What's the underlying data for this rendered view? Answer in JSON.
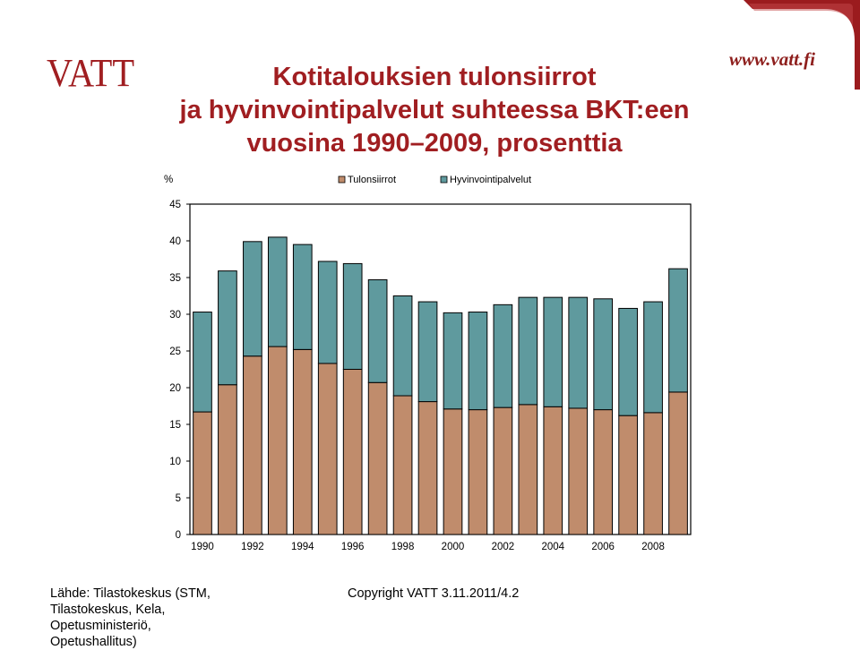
{
  "header": {
    "logo_text": "VATT",
    "website": "www.vatt.fi",
    "title_lines": [
      "Kotitalouksien tulonsiirrot",
      "ja hyvinvointipalvelut suhteessa BKT:een",
      "vuosina 1990–2009, prosenttia"
    ]
  },
  "colors": {
    "brand": "#a01e21",
    "series_1": "#c08c6c",
    "series_2": "#5f9a9e"
  },
  "chart_data": {
    "type": "bar",
    "stacked": true,
    "ylabel": "%",
    "ylim": [
      0,
      45
    ],
    "yticks": [
      "0",
      "5",
      "10",
      "15",
      "20",
      "25",
      "30",
      "35",
      "40",
      "45"
    ],
    "x": [
      1990,
      1991,
      1992,
      1993,
      1994,
      1995,
      1996,
      1997,
      1998,
      1999,
      2000,
      2001,
      2002,
      2003,
      2004,
      2005,
      2006,
      2007,
      2008,
      2009
    ],
    "xtick_labels": [
      "1990",
      "1992",
      "1994",
      "1996",
      "1998",
      "2000",
      "2002",
      "2004",
      "2006",
      "2008"
    ],
    "legend_position": "top",
    "grid": false,
    "series": [
      {
        "name": "Tulonsiirrot",
        "values": [
          16.7,
          20.4,
          24.3,
          25.6,
          25.2,
          23.3,
          22.5,
          20.7,
          18.9,
          18.1,
          17.1,
          17.0,
          17.3,
          17.7,
          17.4,
          17.2,
          17.0,
          16.2,
          16.6,
          19.4
        ]
      },
      {
        "name": "Hyvinvointipalvelut",
        "values": [
          13.6,
          15.5,
          15.6,
          14.9,
          14.3,
          13.9,
          14.4,
          14.0,
          13.6,
          13.6,
          13.1,
          13.3,
          14.0,
          14.6,
          14.9,
          15.1,
          15.1,
          14.6,
          15.1,
          16.8
        ]
      }
    ]
  },
  "footer": {
    "source_lines": [
      "Lähde: Tilastokeskus (STM,",
      "Tilastokeskus, Kela,",
      "Opetusministeriö,",
      "Opetushallitus)"
    ],
    "copyright": "Copyright VATT 3.11.2011/4.2"
  }
}
